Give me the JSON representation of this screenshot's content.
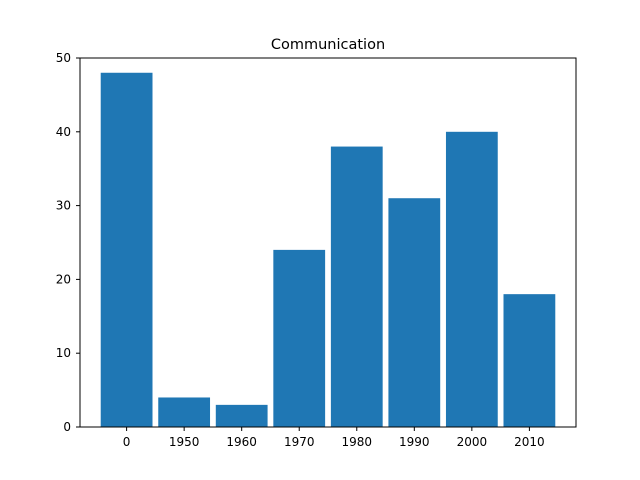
{
  "chart_data": {
    "type": "bar",
    "title": "Communication",
    "xlabel": "",
    "ylabel": "",
    "categories": [
      "0",
      "1950",
      "1960",
      "1970",
      "1980",
      "1990",
      "2000",
      "2010"
    ],
    "values": [
      48,
      4,
      3,
      24,
      38,
      31,
      40,
      18
    ],
    "ylim": [
      0,
      50
    ],
    "yticks": [
      0,
      10,
      20,
      30,
      40,
      50
    ],
    "bar_color": "#1f77b4",
    "grid": false
  }
}
